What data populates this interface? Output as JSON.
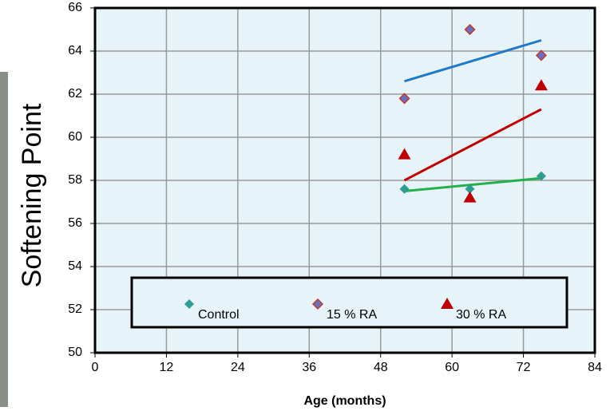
{
  "chart_data": {
    "type": "scatter",
    "xlabel": "Age (months)",
    "ylabel": "Softening Point",
    "xlim": [
      0,
      84
    ],
    "xticks": [
      0,
      12,
      24,
      36,
      48,
      60,
      72,
      84
    ],
    "ylim": [
      50,
      66
    ],
    "yticks": [
      50,
      52,
      54,
      56,
      58,
      60,
      62,
      64,
      66
    ],
    "grid": true,
    "legend": "lower center",
    "series": [
      {
        "name": "Control",
        "color": "#2e9e94",
        "marker": "diamond",
        "x": [
          52,
          63,
          75
        ],
        "values": [
          57.6,
          57.6,
          58.2
        ],
        "trend": {
          "color": "#22b04b",
          "x": [
            52,
            75
          ],
          "values": [
            57.5,
            58.1
          ]
        }
      },
      {
        "name": "15 % RA",
        "color": "#6a6fc0",
        "marker": "diamond",
        "x": [
          52,
          63,
          75
        ],
        "values": [
          61.8,
          65.0,
          63.8
        ],
        "trend": {
          "color": "#1f78c8",
          "x": [
            52,
            75
          ],
          "values": [
            62.6,
            64.5
          ]
        }
      },
      {
        "name": "30 % RA",
        "color": "#c00000",
        "marker": "triangle",
        "x": [
          52,
          63,
          75
        ],
        "values": [
          59.2,
          57.2,
          62.4
        ],
        "trend": {
          "color": "#c00000",
          "x": [
            52,
            75
          ],
          "values": [
            58.0,
            61.3
          ]
        }
      }
    ]
  }
}
